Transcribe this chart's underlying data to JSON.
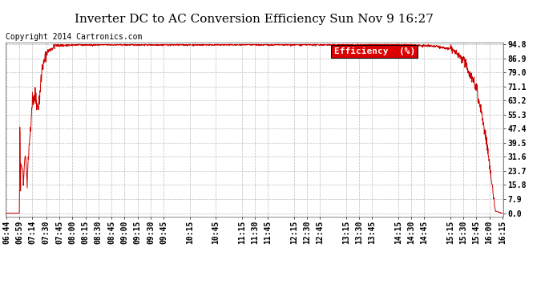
{
  "title": "Inverter DC to AC Conversion Efficiency Sun Nov 9 16:27",
  "copyright": "Copyright 2014 Cartronics.com",
  "legend_label": "Efficiency  (%)",
  "legend_bg": "#dd0000",
  "legend_text_color": "#ffffff",
  "line_color": "#cc0000",
  "background_color": "#ffffff",
  "plot_bg": "#ffffff",
  "grid_color": "#aaaaaa",
  "ytick_labels": [
    "0.0",
    "7.9",
    "15.8",
    "23.7",
    "31.6",
    "39.5",
    "47.4",
    "55.3",
    "63.2",
    "71.1",
    "79.0",
    "86.9",
    "94.8"
  ],
  "ytick_values": [
    0.0,
    7.9,
    15.8,
    23.7,
    31.6,
    39.5,
    47.4,
    55.3,
    63.2,
    71.1,
    79.0,
    86.9,
    94.8
  ],
  "ylim_min": -2.0,
  "ylim_max": 96.0,
  "xtick_labels": [
    "06:44",
    "06:59",
    "07:14",
    "07:30",
    "07:45",
    "08:00",
    "08:15",
    "08:30",
    "08:45",
    "09:00",
    "09:15",
    "09:30",
    "09:45",
    "10:15",
    "10:45",
    "11:15",
    "11:30",
    "11:45",
    "12:15",
    "12:30",
    "12:45",
    "13:15",
    "13:30",
    "13:45",
    "14:15",
    "14:30",
    "14:45",
    "15:15",
    "15:30",
    "15:45",
    "16:00",
    "16:15"
  ],
  "title_fontsize": 11,
  "copyright_fontsize": 7,
  "tick_fontsize": 7,
  "legend_fontsize": 8
}
